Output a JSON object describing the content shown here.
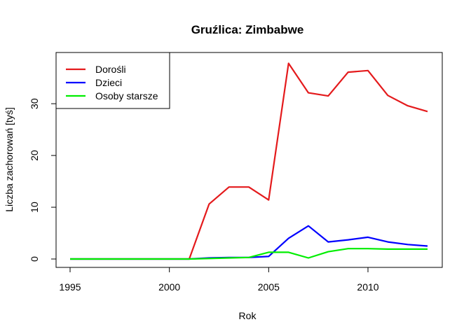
{
  "chart_data": {
    "type": "line",
    "title": "Gruźlica: Zimbabwe",
    "xlabel": "Rok",
    "ylabel": "Liczba zachorowań [tyś]",
    "xlim": [
      1995,
      2013
    ],
    "ylim": [
      0,
      38
    ],
    "x_ticks": [
      1995,
      2000,
      2005,
      2010
    ],
    "y_ticks": [
      0,
      10,
      20,
      30
    ],
    "grid": false,
    "legend_position": "top-left",
    "x": [
      1995,
      1996,
      1997,
      1998,
      1999,
      2000,
      2001,
      2002,
      2003,
      2004,
      2005,
      2006,
      2007,
      2008,
      2009,
      2010,
      2011,
      2012,
      2013
    ],
    "series": [
      {
        "name": "Dorośli",
        "color": "#e41a1c",
        "values": [
          0,
          0,
          0,
          0,
          0,
          0,
          0,
          10.6,
          13.9,
          13.9,
          11.4,
          37.8,
          32.1,
          31.5,
          36.1,
          36.4,
          31.6,
          29.6,
          28.5
        ]
      },
      {
        "name": "Dzieci",
        "color": "#0000ff",
        "values": [
          0,
          0,
          0,
          0,
          0,
          0,
          0,
          0.2,
          0.3,
          0.3,
          0.5,
          4.0,
          6.4,
          3.3,
          3.7,
          4.2,
          3.3,
          2.8,
          2.5
        ]
      },
      {
        "name": "Osoby starsze",
        "color": "#00ee00",
        "values": [
          0,
          0,
          0,
          0,
          0,
          0,
          0,
          0.1,
          0.2,
          0.3,
          1.3,
          1.3,
          0.2,
          1.4,
          2.0,
          2.0,
          1.9,
          1.9,
          1.9
        ]
      }
    ]
  }
}
